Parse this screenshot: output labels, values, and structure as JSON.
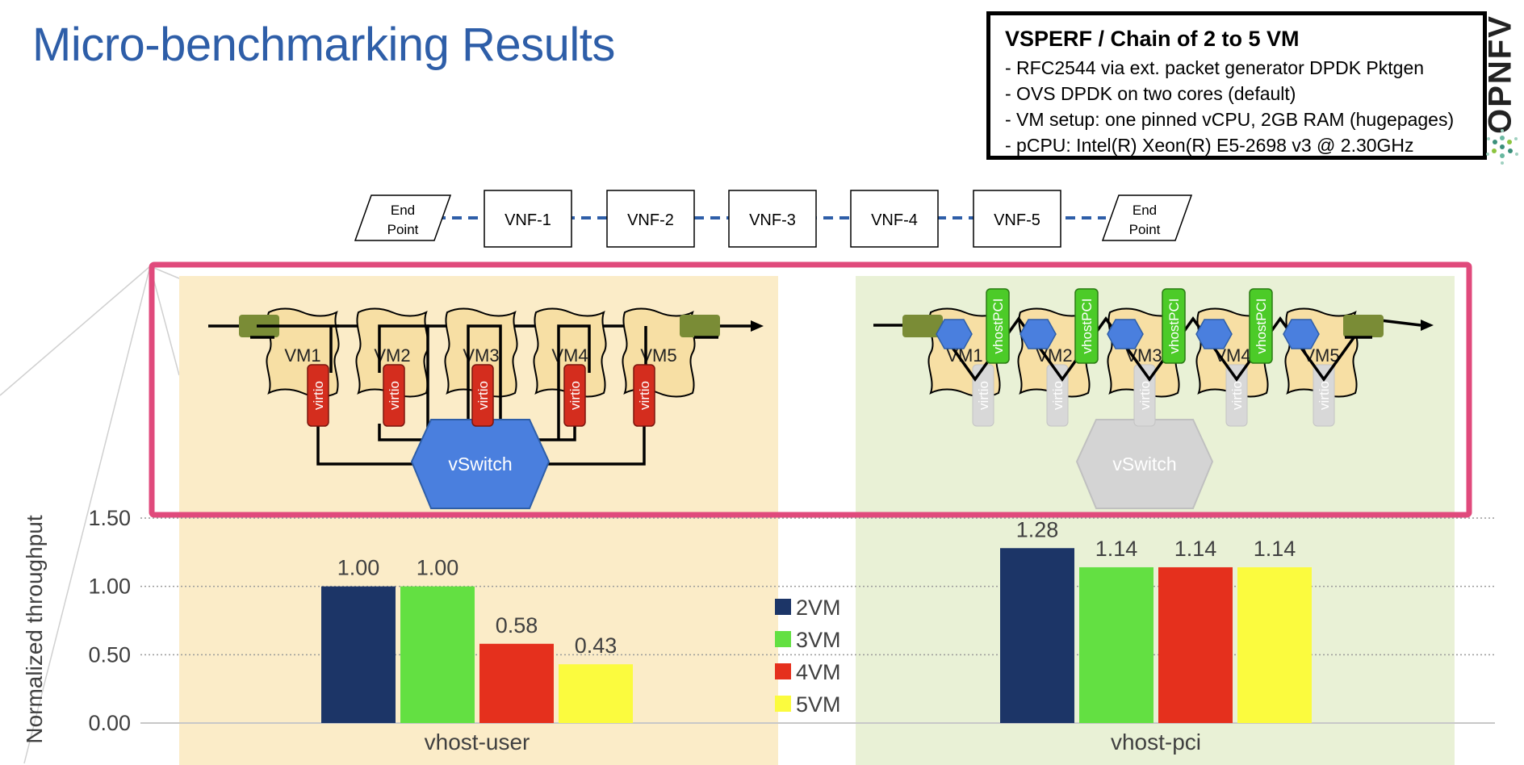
{
  "title": "Micro-benchmarking Results",
  "info": {
    "heading": "VSPERF / Chain of 2 to 5 VM",
    "lines": [
      "- RFC2544 via ext. packet generator DPDK Pktgen",
      "- OVS DPDK on two cores (default)",
      "- VM setup: one pinned vCPU, 2GB RAM (hugepages)",
      "- pCPU: Intel(R) Xeon(R) E5-2698 v3 @ 2.30GHz"
    ]
  },
  "brand": {
    "name": "OPNFV",
    "logo_icon": "opnfv-flower-icon"
  },
  "chain": {
    "start_label": [
      "End",
      "Point"
    ],
    "end_label": [
      "End",
      "Point"
    ],
    "vnfs": [
      "VNF-1",
      "VNF-2",
      "VNF-3",
      "VNF-4",
      "VNF-5"
    ]
  },
  "diagram_left": {
    "vms": [
      "VM1",
      "VM2",
      "VM3",
      "VM4",
      "VM5"
    ],
    "interface_label": "virtio",
    "switch_label": "vSwitch"
  },
  "diagram_right": {
    "vms": [
      "VM1",
      "VM2",
      "VM3",
      "VM4",
      "VM5"
    ],
    "interface_label": "virtio",
    "bridge_label": "vhostPCI",
    "switch_label": "vSwitch"
  },
  "colors": {
    "title": "#2e5ea8",
    "panel_left": "#fbecc8",
    "panel_right": "#e9f1d6",
    "highlight_border": "#e04a7c",
    "vswitch_active": "#4a7fde",
    "vswitch_inactive": "#d4d4d4",
    "virtio": "#d42d1e",
    "vhostpci": "#4ccb28",
    "port_green": "#7a8c36"
  },
  "chart_data": {
    "type": "bar",
    "ylabel": "Normalized throughput",
    "ylim": [
      0,
      1.5
    ],
    "yticks": [
      "0.00",
      "0.50",
      "1.00",
      "1.50"
    ],
    "grid": true,
    "legend": "center",
    "categories": [
      "vhost-user",
      "vhost-pci"
    ],
    "series": [
      {
        "name": "2VM",
        "color": "#1c3567",
        "values": [
          1.0,
          1.28
        ],
        "labels": [
          "1.00",
          "1.28"
        ]
      },
      {
        "name": "3VM",
        "color": "#63e042",
        "values": [
          1.0,
          1.14
        ],
        "labels": [
          "1.00",
          "1.14"
        ]
      },
      {
        "name": "4VM",
        "color": "#e5301d",
        "values": [
          0.58,
          1.14
        ],
        "labels": [
          "0.58",
          "1.14"
        ]
      },
      {
        "name": "5VM",
        "color": "#fbfb3e",
        "values": [
          0.43,
          1.14
        ],
        "labels": [
          "0.43",
          "1.14"
        ]
      }
    ]
  }
}
